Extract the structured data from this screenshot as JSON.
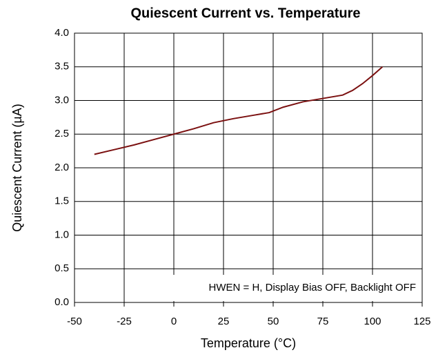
{
  "chart_data": {
    "type": "line",
    "title": "Quiescent Current vs. Temperature",
    "xlabel": "Temperature (°C)",
    "ylabel": "Quiescent Current (µA)",
    "annotation": "HWEN = H, Display Bias OFF, Backlight OFF",
    "x": [
      -40,
      -30,
      -20,
      -10,
      0,
      10,
      20,
      30,
      40,
      48,
      55,
      65,
      75,
      85,
      90,
      95,
      100,
      105
    ],
    "series": [
      {
        "name": "Quiescent Current",
        "color": "#7b1010",
        "values": [
          2.2,
          2.27,
          2.34,
          2.42,
          2.5,
          2.58,
          2.67,
          2.73,
          2.78,
          2.82,
          2.9,
          2.98,
          3.03,
          3.08,
          3.15,
          3.25,
          3.37,
          3.5
        ]
      }
    ],
    "xlim": [
      -50,
      125
    ],
    "xticks": [
      -50,
      -25,
      0,
      25,
      50,
      75,
      100,
      125
    ],
    "ylim": [
      0,
      4
    ],
    "yticks": [
      {
        "value": 0,
        "label": "0.0"
      },
      {
        "value": 0.5,
        "label": "0.5"
      },
      {
        "value": 1,
        "label": "1.0"
      },
      {
        "value": 1.5,
        "label": "1.5"
      },
      {
        "value": 2,
        "label": "2.0"
      },
      {
        "value": 2.5,
        "label": "2.5"
      },
      {
        "value": 3,
        "label": "3.0"
      },
      {
        "value": 3.5,
        "label": "3.5"
      },
      {
        "value": 4,
        "label": "4.0"
      }
    ],
    "grid": true
  }
}
